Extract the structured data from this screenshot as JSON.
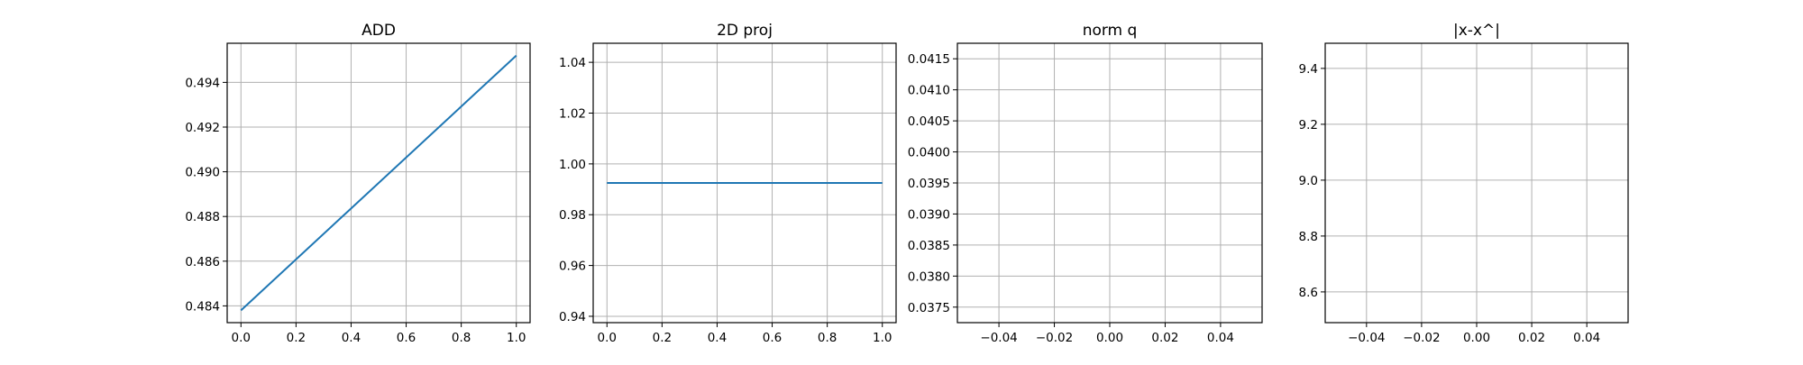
{
  "chart_data": [
    {
      "type": "line",
      "title": "ADD",
      "xlabel": "",
      "ylabel": "",
      "grid": true,
      "xlim": [
        -0.05,
        1.05
      ],
      "ylim": [
        0.48325,
        0.49575
      ],
      "xticks": [
        0.0,
        0.2,
        0.4,
        0.6,
        0.8,
        1.0
      ],
      "xtick_labels": [
        "0.0",
        "0.2",
        "0.4",
        "0.6",
        "0.8",
        "1.0"
      ],
      "yticks": [
        0.484,
        0.486,
        0.488,
        0.49,
        0.492,
        0.494
      ],
      "ytick_labels": [
        "0.484",
        "0.486",
        "0.488",
        "0.490",
        "0.492",
        "0.494"
      ],
      "series": [
        {
          "x": [
            0.0,
            1.0
          ],
          "y": [
            0.4838,
            0.4952
          ],
          "color": "#1f77b4"
        }
      ]
    },
    {
      "type": "line",
      "title": "2D proj",
      "xlabel": "",
      "ylabel": "",
      "grid": true,
      "xlim": [
        -0.05,
        1.05
      ],
      "ylim": [
        0.9375,
        1.0475
      ],
      "xticks": [
        0.0,
        0.2,
        0.4,
        0.6,
        0.8,
        1.0
      ],
      "xtick_labels": [
        "0.0",
        "0.2",
        "0.4",
        "0.6",
        "0.8",
        "1.0"
      ],
      "yticks": [
        0.94,
        0.96,
        0.98,
        1.0,
        1.02,
        1.04
      ],
      "ytick_labels": [
        "0.94",
        "0.96",
        "0.98",
        "1.00",
        "1.02",
        "1.04"
      ],
      "series": [
        {
          "x": [
            0.0,
            1.0
          ],
          "y": [
            0.9925,
            0.9925
          ],
          "color": "#1f77b4"
        }
      ]
    },
    {
      "type": "line",
      "title": "norm q",
      "xlabel": "",
      "ylabel": "",
      "grid": true,
      "xlim": [
        -0.055,
        0.055
      ],
      "ylim": [
        0.03725,
        0.04175
      ],
      "xticks": [
        -0.04,
        -0.02,
        0.0,
        0.02,
        0.04
      ],
      "xtick_labels": [
        "−0.04",
        "−0.02",
        "0.00",
        "0.02",
        "0.04"
      ],
      "yticks": [
        0.0375,
        0.038,
        0.0385,
        0.039,
        0.0395,
        0.04,
        0.0405,
        0.041,
        0.0415
      ],
      "ytick_labels": [
        "0.0375",
        "0.0380",
        "0.0385",
        "0.0390",
        "0.0395",
        "0.0400",
        "0.0405",
        "0.0410",
        "0.0415"
      ],
      "series": []
    },
    {
      "type": "line",
      "title": "|x-x^|",
      "xlabel": "",
      "ylabel": "",
      "grid": true,
      "xlim": [
        -0.055,
        0.055
      ],
      "ylim": [
        8.49,
        9.49
      ],
      "xticks": [
        -0.04,
        -0.02,
        0.0,
        0.02,
        0.04
      ],
      "xtick_labels": [
        "−0.04",
        "−0.02",
        "0.00",
        "0.02",
        "0.04"
      ],
      "yticks": [
        8.6,
        8.8,
        9.0,
        9.2,
        9.4
      ],
      "ytick_labels": [
        "8.6",
        "8.8",
        "9.0",
        "9.2",
        "9.4"
      ],
      "series": []
    }
  ]
}
